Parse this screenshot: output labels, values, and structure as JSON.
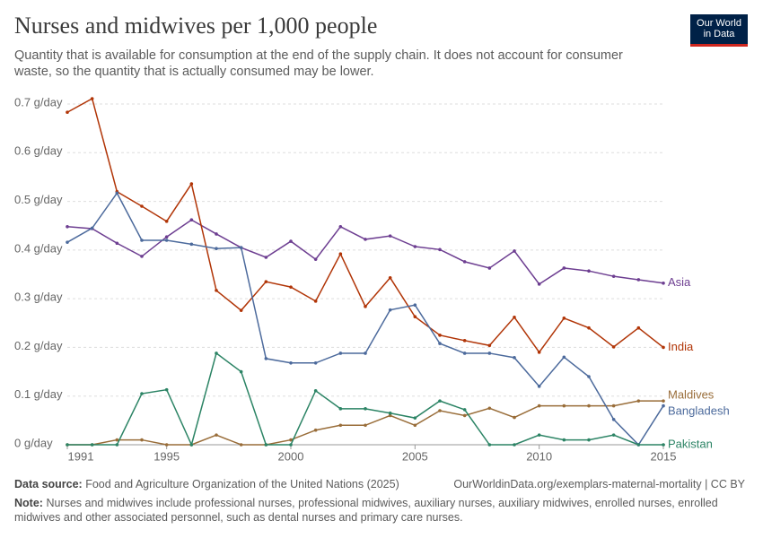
{
  "logo": [
    "Our World",
    "in Data"
  ],
  "chart_data": {
    "type": "line",
    "title": "Nurses and midwives per 1,000 people",
    "subtitle": "Quantity that is available for consumption at the end of the supply chain. It does not account for consumer waste, so the quantity that is actually consumed may be lower.",
    "x": [
      1991,
      1992,
      1993,
      1994,
      1995,
      1996,
      1997,
      1998,
      1999,
      2000,
      2001,
      2002,
      2003,
      2004,
      2005,
      2006,
      2007,
      2008,
      2009,
      2010,
      2011,
      2012,
      2013,
      2014,
      2015
    ],
    "xlim": [
      1991,
      2015
    ],
    "xticks": [
      1991,
      1995,
      2000,
      2005,
      2010,
      2015
    ],
    "ylim": [
      0,
      0.7
    ],
    "yticks": [
      {
        "value": 0,
        "label": "0 g/day"
      },
      {
        "value": 0.1,
        "label": "0.1 g/day"
      },
      {
        "value": 0.2,
        "label": "0.2 g/day"
      },
      {
        "value": 0.3,
        "label": "0.3 g/day"
      },
      {
        "value": 0.4,
        "label": "0.4 g/day"
      },
      {
        "value": 0.5,
        "label": "0.5 g/day"
      },
      {
        "value": 0.6,
        "label": "0.6 g/day"
      },
      {
        "value": 0.7,
        "label": "0.7 g/day"
      }
    ],
    "grid": true,
    "series": [
      {
        "name": "Asia",
        "color": "#6d3e91",
        "values": [
          0.448,
          0.444,
          0.414,
          0.387,
          0.427,
          0.462,
          0.433,
          0.405,
          0.385,
          0.418,
          0.381,
          0.448,
          0.422,
          0.429,
          0.407,
          0.401,
          0.376,
          0.363,
          0.398,
          0.33,
          0.363,
          0.357,
          0.346,
          0.339,
          0.332
        ]
      },
      {
        "name": "India",
        "color": "#b13507",
        "values": [
          0.683,
          0.711,
          0.52,
          0.49,
          0.459,
          0.536,
          0.317,
          0.276,
          0.335,
          0.324,
          0.295,
          0.392,
          0.284,
          0.343,
          0.263,
          0.225,
          0.214,
          0.204,
          0.262,
          0.19,
          0.26,
          0.24,
          0.201,
          0.24,
          0.2
        ]
      },
      {
        "name": "Maldives",
        "color": "#996d39",
        "values": [
          0,
          0,
          0.01,
          0.01,
          0,
          0,
          0.02,
          0,
          0,
          0.01,
          0.03,
          0.04,
          0.04,
          0.06,
          0.04,
          0.07,
          0.06,
          0.075,
          0.056,
          0.08,
          0.08,
          0.08,
          0.08,
          0.09,
          0.09
        ]
      },
      {
        "name": "Bangladesh",
        "color": "#4c6a9c",
        "values": [
          0.416,
          0.445,
          0.517,
          0.42,
          0.42,
          0.412,
          0.403,
          0.405,
          0.177,
          0.168,
          0.168,
          0.188,
          0.188,
          0.277,
          0.287,
          0.208,
          0.188,
          0.188,
          0.179,
          0.12,
          0.18,
          0.14,
          0.052,
          0,
          0.08
        ]
      },
      {
        "name": "Pakistan",
        "color": "#2c8465",
        "values": [
          0,
          0,
          0,
          0.105,
          0.113,
          0,
          0.188,
          0.15,
          0,
          0,
          0.111,
          0.074,
          0.074,
          0.065,
          0.055,
          0.09,
          0.072,
          0,
          0,
          0.02,
          0.01,
          0.01,
          0.02,
          0,
          0
        ]
      }
    ],
    "source_label": "Data source:",
    "source": "Food and Agriculture Organization of the United Nations (2025)",
    "url": "OurWorldinData.org/exemplars-maternal-mortality | CC BY",
    "note_label": "Note:",
    "note": "Nurses and midwives include professional nurses, professional midwives, auxiliary nurses, auxiliary midwives, enrolled nurses, enrolled midwives and other associated personnel, such as dental nurses and primary care nurses."
  }
}
